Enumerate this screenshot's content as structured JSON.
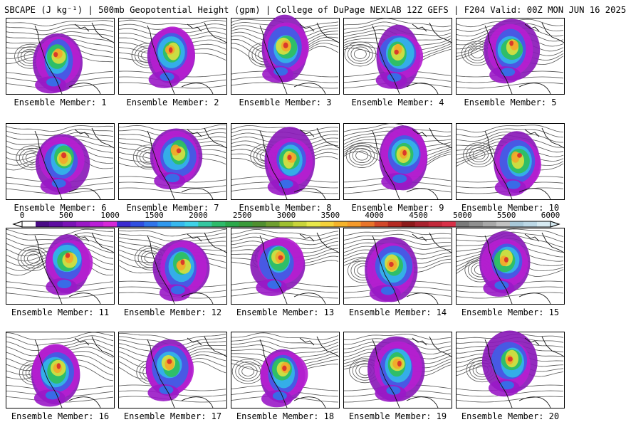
{
  "header": {
    "title": "SBCAPE (J kg⁻¹) | 500mb Geopotential Height (gpm) | College of DuPage NEXLAB 12Z GEFS | F204 Valid: 00Z MON JUN 16 2025"
  },
  "colorbar": {
    "ticks": [
      "0",
      "500",
      "1000",
      "1500",
      "2000",
      "2500",
      "3000",
      "3500",
      "4000",
      "4500",
      "5000",
      "5500",
      "6000"
    ],
    "colors": [
      "#ffffff",
      "#4a0b86",
      "#5e0da0",
      "#7a12b5",
      "#9a18c6",
      "#b91ed6",
      "#d628d8",
      "#3b2ad0",
      "#2f4ee0",
      "#2f74ea",
      "#2f98ee",
      "#36b8ee",
      "#3ed2e8",
      "#35c7a0",
      "#2dbb6a",
      "#2aa84a",
      "#3a9a3a",
      "#4f8f2f",
      "#6f9f2f",
      "#9fbf2f",
      "#c9d43a",
      "#e8e84a",
      "#f5d23a",
      "#f5b32a",
      "#f59a2a",
      "#e8742a",
      "#d2482a",
      "#b52a22",
      "#8c1a1a",
      "#a8222e",
      "#c2283a",
      "#d83048",
      "#7a7a7a",
      "#909090",
      "#a8a8a8",
      "#c2c2c2",
      "#a8c8d8",
      "#bcd8e6",
      "#d6eaf2"
    ]
  },
  "panels": [
    {
      "label": "Ensemble Member: 1"
    },
    {
      "label": "Ensemble Member: 2"
    },
    {
      "label": "Ensemble Member: 3"
    },
    {
      "label": "Ensemble Member: 4"
    },
    {
      "label": "Ensemble Member: 5"
    },
    {
      "label": "Ensemble Member: 6"
    },
    {
      "label": "Ensemble Member: 7"
    },
    {
      "label": "Ensemble Member: 8"
    },
    {
      "label": "Ensemble Member: 9"
    },
    {
      "label": "Ensemble Member: 10"
    },
    {
      "label": "Ensemble Member: 11"
    },
    {
      "label": "Ensemble Member: 12"
    },
    {
      "label": "Ensemble Member: 13"
    },
    {
      "label": "Ensemble Member: 14"
    },
    {
      "label": "Ensemble Member: 15"
    },
    {
      "label": "Ensemble Member: 16"
    },
    {
      "label": "Ensemble Member: 17"
    },
    {
      "label": "Ensemble Member: 18"
    },
    {
      "label": "Ensemble Member: 19"
    },
    {
      "label": "Ensemble Member: 20"
    }
  ]
}
